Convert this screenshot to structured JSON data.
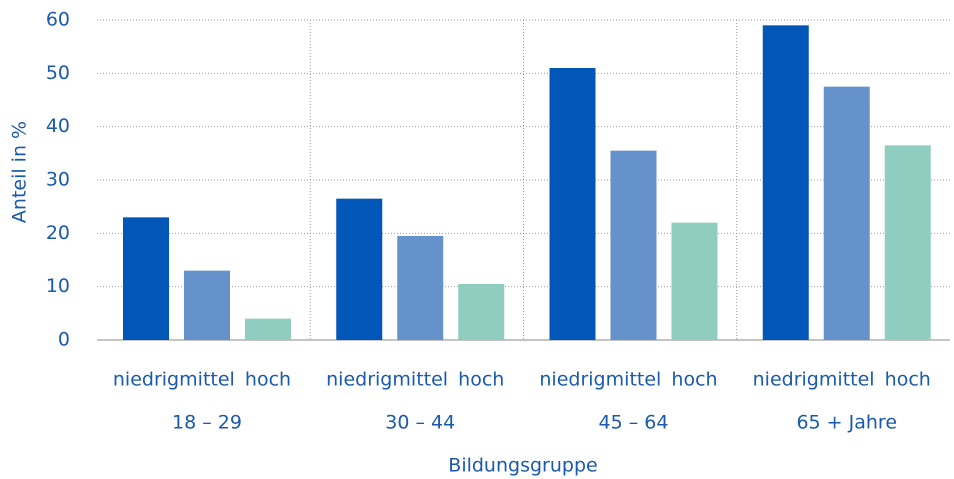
{
  "chart_data": {
    "type": "bar",
    "x_label": "Bildungsgruppe",
    "y_label": "Anteil in %",
    "categories": [
      "18 – 29",
      "30 – 44",
      "45 – 64",
      "65 + Jahre"
    ],
    "series": [
      {
        "name": "niedrig",
        "color": "#0057b8",
        "values": [
          23,
          26.5,
          51,
          59
        ]
      },
      {
        "name": "mittel",
        "color": "#6692cc",
        "values": [
          13,
          19.5,
          35.5,
          47.5
        ]
      },
      {
        "name": "hoch",
        "color": "#8fcdc0",
        "values": [
          4,
          10.5,
          22,
          36.5
        ]
      }
    ],
    "ylim": [
      0,
      60
    ],
    "yticks": [
      0,
      10,
      20,
      30,
      40,
      50,
      60
    ],
    "grid": true
  }
}
